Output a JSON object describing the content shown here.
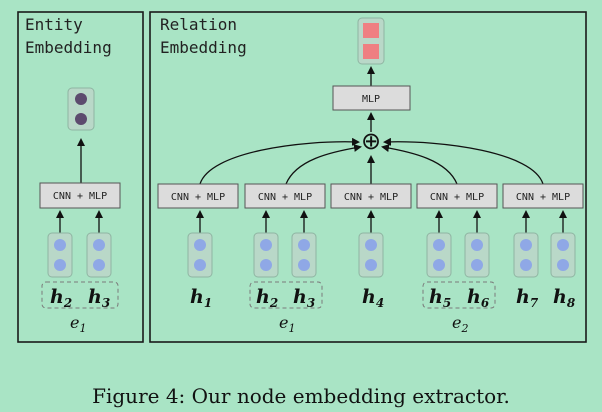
{
  "entity_panel": {
    "title_line1": "Entity",
    "title_line2": "Embedding",
    "module_label": "CNN + MLP",
    "inputs": [
      {
        "base": "h",
        "sub": "2"
      },
      {
        "base": "h",
        "sub": "3"
      }
    ],
    "entity": {
      "base": "e",
      "sub": "1"
    }
  },
  "relation_panel": {
    "title_line1": "Relation",
    "title_line2": "Embedding",
    "mlp_label": "MLP",
    "combine_symbol": "⊕",
    "modules": [
      {
        "label": "CNN + MLP",
        "inputs": [
          {
            "base": "h",
            "sub": "1"
          }
        ]
      },
      {
        "label": "CNN + MLP",
        "inputs": [
          {
            "base": "h",
            "sub": "2"
          },
          {
            "base": "h",
            "sub": "3"
          }
        ],
        "entity": {
          "base": "e",
          "sub": "1"
        }
      },
      {
        "label": "CNN + MLP",
        "inputs": [
          {
            "base": "h",
            "sub": "4"
          }
        ]
      },
      {
        "label": "CNN + MLP",
        "inputs": [
          {
            "base": "h",
            "sub": "5"
          },
          {
            "base": "h",
            "sub": "6"
          }
        ],
        "entity": {
          "base": "e",
          "sub": "2"
        }
      },
      {
        "label": "CNN + MLP",
        "inputs": [
          {
            "base": "h",
            "sub": "7"
          },
          {
            "base": "h",
            "sub": "8"
          }
        ]
      }
    ]
  },
  "caption": "Figure 4: Our node embedding extractor.",
  "colors": {
    "background": "#a9e4c5",
    "node": "#8fa8e6",
    "entity_output": "#5d4a6e",
    "relation_output": "#ef7f82"
  }
}
